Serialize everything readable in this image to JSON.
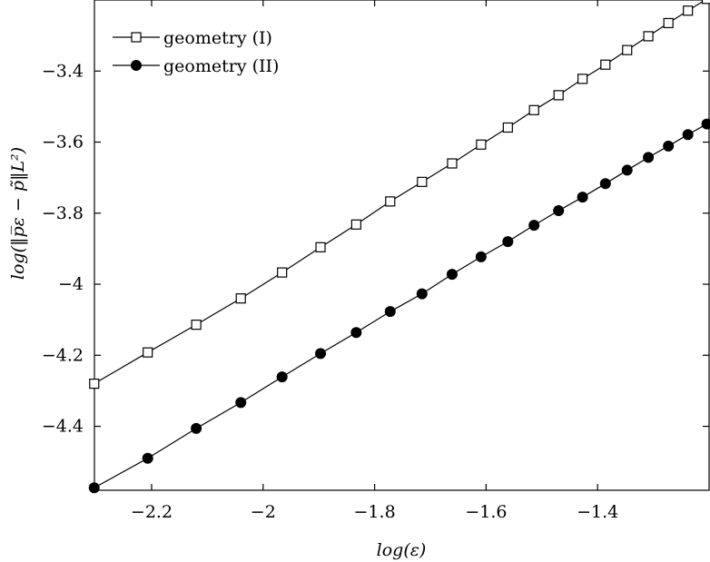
{
  "chart_data": {
    "type": "line",
    "xlabel": "log(ε)",
    "ylabel": "log(‖p̅ε − p̃‖L²)",
    "xlim": [
      -2.3026,
      -1.2
    ],
    "ylim": [
      -4.58,
      -3.2
    ],
    "xticks": [
      -2.2,
      -2,
      -1.8,
      -1.6,
      -1.4
    ],
    "xtick_labels": [
      "−2.2",
      "−2",
      "−1.8",
      "−1.6",
      "−1.4"
    ],
    "yticks": [
      -4.4,
      -4.2,
      -4,
      -3.8,
      -3.6,
      -3.4
    ],
    "ytick_labels": [
      "−4.4",
      "−4.2",
      "−4",
      "−3.8",
      "−3.6",
      "−3.4"
    ],
    "grid": false,
    "legend_position": "top-left",
    "x": [
      -2.303,
      -2.207,
      -2.12,
      -2.04,
      -1.966,
      -1.897,
      -1.833,
      -1.772,
      -1.715,
      -1.661,
      -1.609,
      -1.561,
      -1.514,
      -1.47,
      -1.427,
      -1.386,
      -1.347,
      -1.309,
      -1.273,
      -1.238,
      -1.204
    ],
    "series": [
      {
        "name": "geometry (I)",
        "marker": "open-square",
        "values": [
          -4.28,
          -4.192,
          -4.114,
          -4.04,
          -3.967,
          -3.896,
          -3.832,
          -3.767,
          -3.712,
          -3.66,
          -3.607,
          -3.559,
          -3.51,
          -3.468,
          -3.422,
          -3.382,
          -3.341,
          -3.302,
          -3.265,
          -3.23,
          -3.197
        ]
      },
      {
        "name": "geometry (II)",
        "marker": "filled-circle",
        "values": [
          -4.573,
          -4.49,
          -4.406,
          -4.333,
          -4.261,
          -4.195,
          -4.136,
          -4.077,
          -4.027,
          -3.972,
          -3.923,
          -3.88,
          -3.834,
          -3.793,
          -3.755,
          -3.717,
          -3.679,
          -3.643,
          -3.611,
          -3.579,
          -3.549
        ]
      }
    ]
  },
  "colors": {
    "line": "#000000",
    "marker_fill_open": "#ffffff",
    "marker_fill_solid": "#000000"
  }
}
